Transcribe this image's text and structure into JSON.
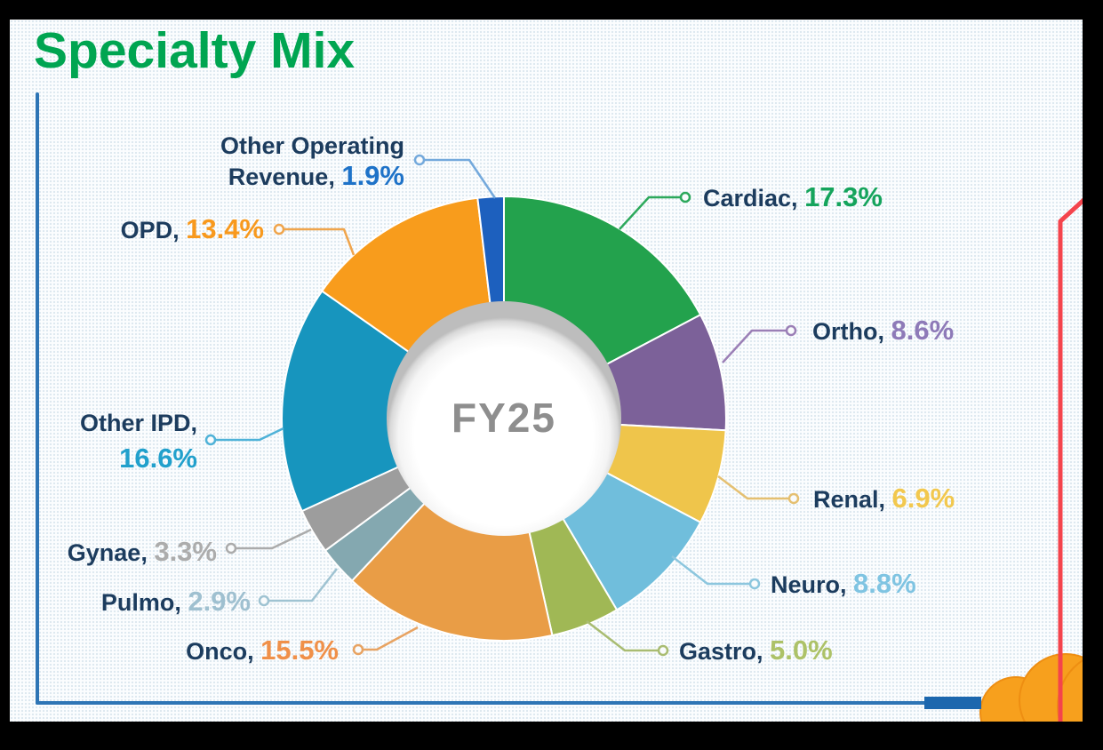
{
  "title": "Specialty Mix",
  "center_label": "FY25",
  "chart_data": {
    "type": "pie",
    "subtype": "donut",
    "title": "Specialty Mix",
    "center_label": "FY25",
    "unit": "%",
    "direction": "clockwise",
    "start_angle_deg": 0,
    "legend_position": "callout-labels",
    "segments": [
      {
        "label": "Cardiac",
        "value": 17.3,
        "display": "17.3%",
        "color": "#23A24D",
        "text_color": "#15A45C",
        "leader_color": "#2DA95C"
      },
      {
        "label": "Ortho",
        "value": 8.6,
        "display": "8.6%",
        "color": "#7C6199",
        "text_color": "#8E7AB8",
        "leader_color": "#9B7FB6"
      },
      {
        "label": "Renal",
        "value": 6.9,
        "display": "6.9%",
        "color": "#EFC54B",
        "text_color": "#F2C84E",
        "leader_color": "#E5C071"
      },
      {
        "label": "Neuro",
        "value": 8.8,
        "display": "8.8%",
        "color": "#70BEDC",
        "text_color": "#7FC4E2",
        "leader_color": "#8CC6DE"
      },
      {
        "label": "Gastro",
        "value": 5.0,
        "display": "5.0%",
        "color": "#A0B855",
        "text_color": "#ADC268",
        "leader_color": "#A9BC72"
      },
      {
        "label": "Onco",
        "value": 15.5,
        "display": "15.5%",
        "color": "#E99D46",
        "text_color": "#F09049",
        "leader_color": "#E8A362"
      },
      {
        "label": "Pulmo",
        "value": 2.9,
        "display": "2.9%",
        "color": "#84A8B0",
        "text_color": "#9FC0D0",
        "leader_color": "#9FC3D2"
      },
      {
        "label": "Gynae",
        "value": 3.3,
        "display": "3.3%",
        "color": "#9D9D9D",
        "text_color": "#ACACAC",
        "leader_color": "#ABABAB"
      },
      {
        "label": "Other IPD",
        "value": 16.6,
        "display": "16.6%",
        "color": "#1795BE",
        "text_color": "#21A0CC",
        "leader_color": "#4FB2D8"
      },
      {
        "label": "OPD",
        "value": 13.4,
        "display": "13.4%",
        "color": "#F89C1C",
        "text_color": "#F8991D",
        "leader_color": "#F0A54C"
      },
      {
        "label": "Other Operating Revenue",
        "value": 1.9,
        "display": "1.9%",
        "color": "#1D60BE",
        "text_color": "#1E72C8",
        "leader_color": "#74A9DC"
      }
    ]
  },
  "decor": {
    "title_color": "#00A551",
    "label_name_color": "#1C3C5E",
    "center_label_color": "#8E8E8E",
    "axis_color": "#2E75B5",
    "axis_bar_color": "#1C67AE",
    "red_line_color": "#F4444C",
    "cloud_color": "#F7A01D",
    "cloud_edge_color": "#EE8E12"
  }
}
